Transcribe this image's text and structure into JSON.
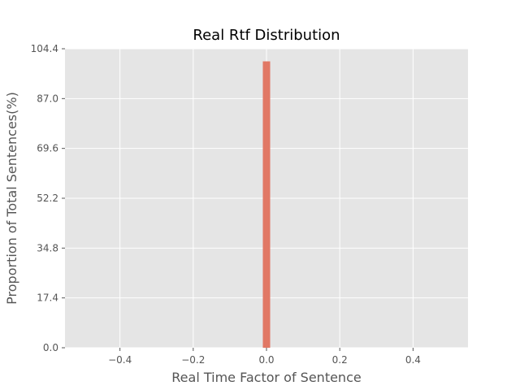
{
  "chart_data": {
    "type": "bar",
    "title": "Real Rtf Distribution",
    "xlabel": "Real  Time  Factor  of  Sentence",
    "ylabel": "Proportion  of  Total  Sentences(%)",
    "xlim": [
      -0.55,
      0.55
    ],
    "ylim": [
      0.0,
      104.4
    ],
    "xticks": [
      -0.4,
      -0.2,
      0.0,
      0.2,
      0.4
    ],
    "xtick_labels": [
      "−0.4",
      "−0.2",
      "0.0",
      "0.2",
      "0.4"
    ],
    "yticks": [
      0.0,
      17.4,
      34.8,
      52.2,
      69.6,
      87.0,
      104.4
    ],
    "ytick_labels": [
      "0.0",
      "17.4",
      "34.8",
      "52.2",
      "69.6",
      "87.0",
      "104.4"
    ],
    "bars": [
      {
        "x_start": -0.01,
        "x_end": 0.01,
        "value": 100.0
      }
    ],
    "grid": true,
    "colors": {
      "bar": "#E17865",
      "plot_background": "#E5E5E5",
      "grid": "#FFFFFF"
    }
  }
}
